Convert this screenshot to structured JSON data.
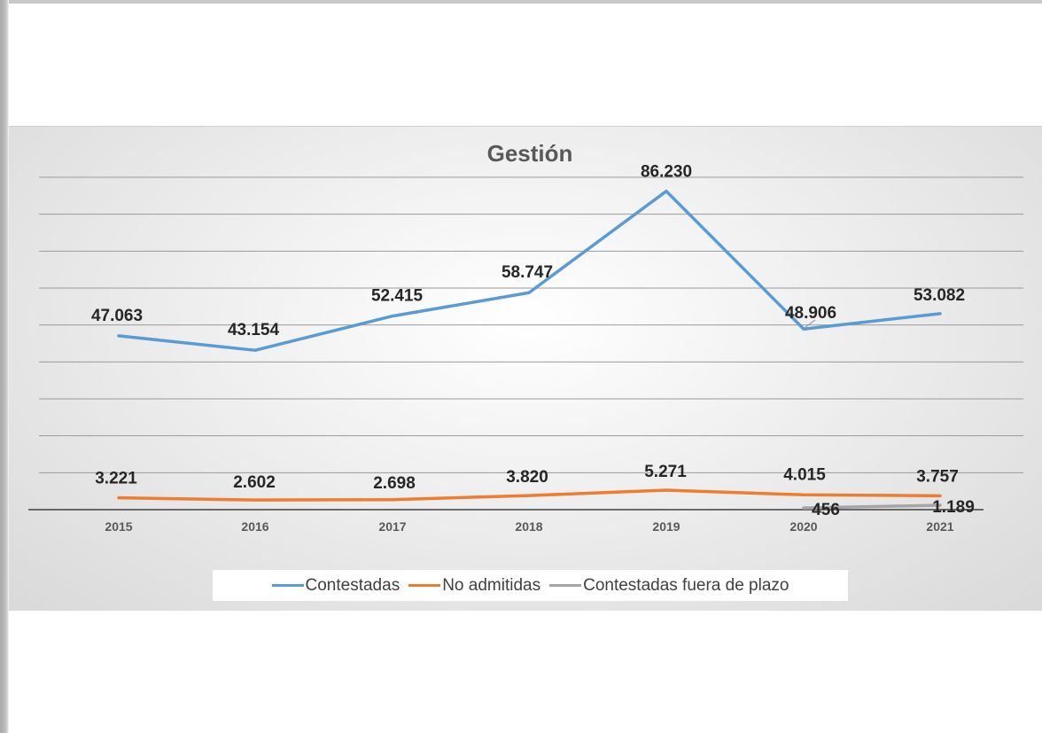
{
  "chart_data": {
    "type": "line",
    "title": "Gestión",
    "categories": [
      "2015",
      "2016",
      "2017",
      "2018",
      "2019",
      "2020",
      "2021"
    ],
    "series": [
      {
        "name": "Contestadas",
        "color": "#5b9bd5",
        "values": [
          47063,
          43154,
          52415,
          58747,
          86230,
          48906,
          53082
        ],
        "labels": [
          "47.063",
          "43.154",
          "52.415",
          "58.747",
          "86.230",
          "48.906",
          "53.082"
        ]
      },
      {
        "name": "No admitidas",
        "color": "#ed7d31",
        "values": [
          3221,
          2602,
          2698,
          3820,
          5271,
          4015,
          3757
        ],
        "labels": [
          "3.221",
          "2.602",
          "2.698",
          "3.820",
          "5.271",
          "4.015",
          "3.757"
        ]
      },
      {
        "name": "Contestadas fuera de plazo",
        "color": "#a5a5a5",
        "values": [
          null,
          null,
          null,
          null,
          null,
          456,
          1189
        ],
        "labels": [
          null,
          null,
          null,
          null,
          null,
          "456",
          "1.189"
        ]
      }
    ],
    "ylim": [
      0,
      90000
    ],
    "grid": true,
    "legend": "bottom"
  }
}
